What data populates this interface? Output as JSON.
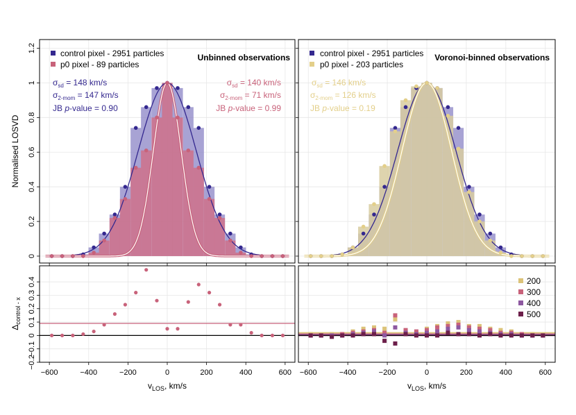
{
  "colors": {
    "control": "#34288f",
    "control_bar": "#8b84c6",
    "p0": "#c8627a",
    "p0_bar": "#cf7189",
    "vor": "#e3cf8a",
    "vor_bar": "#d8cda0",
    "n200": "#dcc379",
    "n300": "#c8627a",
    "n400": "#8d58a0",
    "n500": "#6c1f4a"
  },
  "x_axis_label": "v",
  "x_axis_sub": "LOS",
  "x_axis_unit": ", km/s",
  "y_axis_label": "Normalised LOSVD",
  "delta_label": "Δ",
  "delta_sub": "control - x",
  "x_ticks": [
    "−600",
    "−400",
    "−200",
    "0",
    "200",
    "400",
    "600"
  ],
  "y_ticks_top": [
    "0",
    "0.2",
    "0.4",
    "0.6",
    "0.8",
    "1",
    "1.2"
  ],
  "y_ticks_bottom": [
    "−0.2",
    "−0.1",
    "0",
    "0.1",
    "0.2",
    "0.3",
    "0.4"
  ],
  "left_panel": {
    "title": "Unbinned observations",
    "legend": [
      {
        "label": "control pixel - 2951 particles"
      },
      {
        "label": "p0 pixel - 89 particles"
      }
    ],
    "control_stats": {
      "sd_label": "σ",
      "sd_sub": "sd",
      "sd_value": " = 148 km/s",
      "mom_label": "σ",
      "mom_sub": "2-mom",
      "mom_value": " = 147 km/s",
      "jb_text": "JB ",
      "jb_p": "p",
      "jb_value": "-value = 0.90"
    },
    "p0_stats": {
      "sd_label": "σ",
      "sd_sub": "sd",
      "sd_value": " = 140 km/s",
      "mom_label": "σ",
      "mom_sub": "2-mom",
      "mom_value": " = 71 km/s",
      "jb_text": "JB ",
      "jb_p": "p",
      "jb_value": "-value = 0.99"
    }
  },
  "right_panel": {
    "title": "Voronoi-binned observations",
    "legend": [
      {
        "label": "control pixel - 2951 particles"
      },
      {
        "label": "p0 pixel - 203 particles"
      }
    ],
    "vor_stats": {
      "sd_label": "σ",
      "sd_sub": "sd",
      "sd_value": " = 146 km/s",
      "mom_label": "σ",
      "mom_sub": "2-mom",
      "mom_value": " = 126 km/s",
      "jb_text": "JB ",
      "jb_p": "p",
      "jb_value": "-value = 0.19"
    },
    "n_legend": [
      "200",
      "300",
      "400",
      "500"
    ]
  },
  "chart_data": [
    {
      "type": "bar",
      "panel": "top-left",
      "title": "Unbinned observations",
      "xlabel": "vLOS, km/s",
      "ylabel": "Normalised LOSVD",
      "xlim": [
        -650,
        650
      ],
      "ylim": [
        -0.04,
        1.25
      ],
      "bin_width": 53.5,
      "x": [
        -588,
        -535,
        -481,
        -428,
        -374,
        -321,
        -267,
        -214,
        -160,
        -107,
        -53,
        0,
        53,
        107,
        160,
        214,
        267,
        321,
        374,
        428,
        481,
        535,
        588
      ],
      "series": [
        {
          "name": "control pixel - 2951 particles",
          "values": [
            0,
            0,
            0,
            0.01,
            0.05,
            0.13,
            0.24,
            0.4,
            0.74,
            0.86,
            0.97,
            1.0,
            0.97,
            0.86,
            0.74,
            0.4,
            0.24,
            0.13,
            0.05,
            0.01,
            0,
            0,
            0
          ]
        },
        {
          "name": "p0 pixel - 89 particles",
          "values": [
            0,
            0,
            0,
            0,
            0.02,
            0.09,
            0.22,
            0.33,
            0.51,
            0.61,
            0.8,
            1.0,
            0.8,
            0.61,
            0.51,
            0.33,
            0.22,
            0.09,
            0.02,
            0,
            0,
            0,
            0
          ]
        }
      ],
      "fits": [
        {
          "name": "control gaussian",
          "mean": 0,
          "sigma": 148
        },
        {
          "name": "p0 gaussian",
          "mean": 0,
          "sigma": 71
        }
      ]
    },
    {
      "type": "bar",
      "panel": "top-right",
      "title": "Voronoi-binned observations",
      "xlabel": "vLOS, km/s",
      "xlim": [
        -650,
        650
      ],
      "ylim": [
        -0.04,
        1.25
      ],
      "bin_width": 53.5,
      "x": [
        -588,
        -535,
        -481,
        -428,
        -374,
        -321,
        -267,
        -214,
        -160,
        -107,
        -53,
        0,
        53,
        107,
        160,
        214,
        267,
        321,
        374,
        428,
        481,
        535,
        588
      ],
      "series": [
        {
          "name": "control pixel - 2951 particles",
          "values": [
            0,
            0,
            0,
            0.01,
            0.05,
            0.13,
            0.24,
            0.4,
            0.74,
            0.86,
            0.97,
            1.0,
            0.97,
            0.86,
            0.74,
            0.4,
            0.24,
            0.13,
            0.05,
            0.01,
            0,
            0,
            0
          ]
        },
        {
          "name": "p0 pixel - 203 particles",
          "values": [
            0,
            0,
            0,
            0.01,
            0.05,
            0.17,
            0.3,
            0.52,
            0.72,
            0.9,
            0.98,
            1.0,
            0.97,
            0.81,
            0.62,
            0.37,
            0.2,
            0.09,
            0.02,
            0,
            0,
            0,
            0
          ]
        }
      ],
      "fits": [
        {
          "name": "control gaussian",
          "mean": 0,
          "sigma": 148
        },
        {
          "name": "voronoi gaussian",
          "mean": 0,
          "sigma": 126
        }
      ]
    },
    {
      "type": "scatter",
      "panel": "bottom-left",
      "xlabel": "vLOS, km/s",
      "ylabel": "Δcontrol - x",
      "xlim": [
        -650,
        650
      ],
      "ylim": [
        -0.2,
        0.52
      ],
      "x": [
        -588,
        -535,
        -481,
        -428,
        -374,
        -321,
        -267,
        -214,
        -160,
        -107,
        -53,
        0,
        53,
        107,
        160,
        214,
        267,
        321,
        374,
        428,
        481,
        535,
        588
      ],
      "values": [
        0,
        0,
        0,
        0.01,
        0.03,
        0.08,
        0.16,
        0.23,
        0.32,
        0.49,
        0.26,
        0.05,
        0.05,
        0.25,
        0.38,
        0.32,
        0.23,
        0.08,
        0.08,
        0.02,
        0,
        0,
        0
      ],
      "hline": 0.09
    },
    {
      "type": "scatter",
      "panel": "bottom-right",
      "xlabel": "vLOS, km/s",
      "xlim": [
        -650,
        650
      ],
      "ylim": [
        -0.2,
        0.52
      ],
      "x": [
        -588,
        -535,
        -481,
        -428,
        -374,
        -321,
        -267,
        -214,
        -160,
        -107,
        -53,
        0,
        53,
        107,
        160,
        214,
        267,
        321,
        374,
        428,
        481,
        535,
        588
      ],
      "series": [
        {
          "name": "200",
          "values": [
            0.01,
            0,
            0.01,
            0.01,
            0.03,
            0.05,
            0.06,
            0.05,
            0.12,
            0.03,
            0.02,
            0.05,
            0.07,
            0.09,
            0.1,
            0.07,
            0.07,
            0.05,
            0.04,
            0.03,
            0.01,
            0.01,
            0
          ]
        },
        {
          "name": "300",
          "values": [
            0,
            0,
            0,
            0.01,
            0.02,
            0.03,
            0.04,
            0.02,
            0.15,
            0.04,
            0.03,
            0.04,
            0.06,
            0.07,
            0.08,
            0.06,
            0.05,
            0.04,
            0.02,
            0.02,
            0.01,
            0,
            0
          ]
        },
        {
          "name": "400",
          "values": [
            0,
            0,
            0,
            0,
            0.01,
            0.02,
            0.03,
            0,
            0.06,
            0.02,
            0.01,
            0.02,
            0.03,
            0.05,
            0.06,
            0.04,
            0.03,
            0.02,
            0.01,
            0.01,
            0,
            0,
            0
          ]
        },
        {
          "name": "500",
          "values": [
            0,
            0,
            -0.01,
            0,
            0,
            0.01,
            0.01,
            -0.04,
            -0.06,
            0.01,
            0,
            0,
            0,
            0.02,
            0.01,
            0.01,
            0,
            0.01,
            0,
            0,
            0,
            0,
            0
          ]
        }
      ],
      "hlines": [
        0.02,
        0.01,
        0.005,
        0.0
      ]
    }
  ]
}
